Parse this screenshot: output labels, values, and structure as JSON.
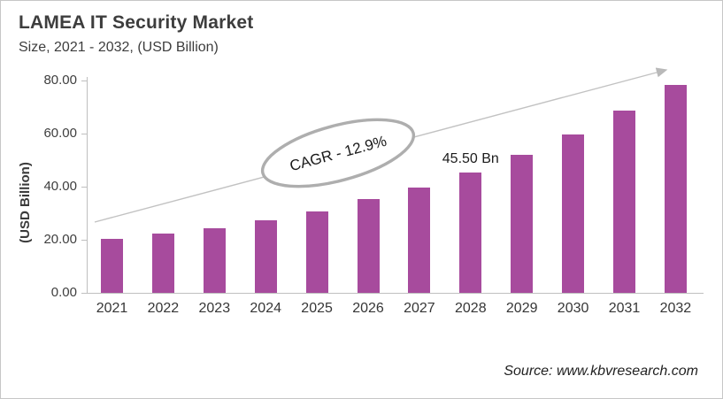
{
  "header": {
    "title": "LAMEA IT Security Market",
    "subtitle": "Size, 2021 - 2032, (USD Billion)"
  },
  "chart_data": {
    "type": "bar",
    "title": "LAMEA IT Security Market",
    "subtitle": "Size, 2021 - 2032, (USD Billion)",
    "categories": [
      "2021",
      "2022",
      "2023",
      "2024",
      "2025",
      "2026",
      "2027",
      "2028",
      "2029",
      "2030",
      "2031",
      "2032"
    ],
    "values": [
      20.5,
      22.2,
      24.3,
      27.3,
      30.8,
      35.2,
      39.8,
      45.5,
      52.1,
      59.7,
      68.6,
      78.2
    ],
    "xlabel": "",
    "ylabel": "(USD Billion)",
    "ylim": [
      0,
      80
    ],
    "yticks": [
      {
        "value": 0,
        "label": "0.00"
      },
      {
        "value": 20,
        "label": "20.00"
      },
      {
        "value": 40,
        "label": "40.00"
      },
      {
        "value": 60,
        "label": "60.00"
      },
      {
        "value": 80,
        "label": "80.00"
      }
    ],
    "grid": false,
    "legend": false,
    "bar_color": "#a74b9d",
    "annotations": {
      "cagr_label": "CAGR - 12.9%",
      "value_label": "45.50 Bn",
      "value_label_category": "2028"
    }
  },
  "footer": {
    "source": "Source: www.kbvresearch.com"
  }
}
